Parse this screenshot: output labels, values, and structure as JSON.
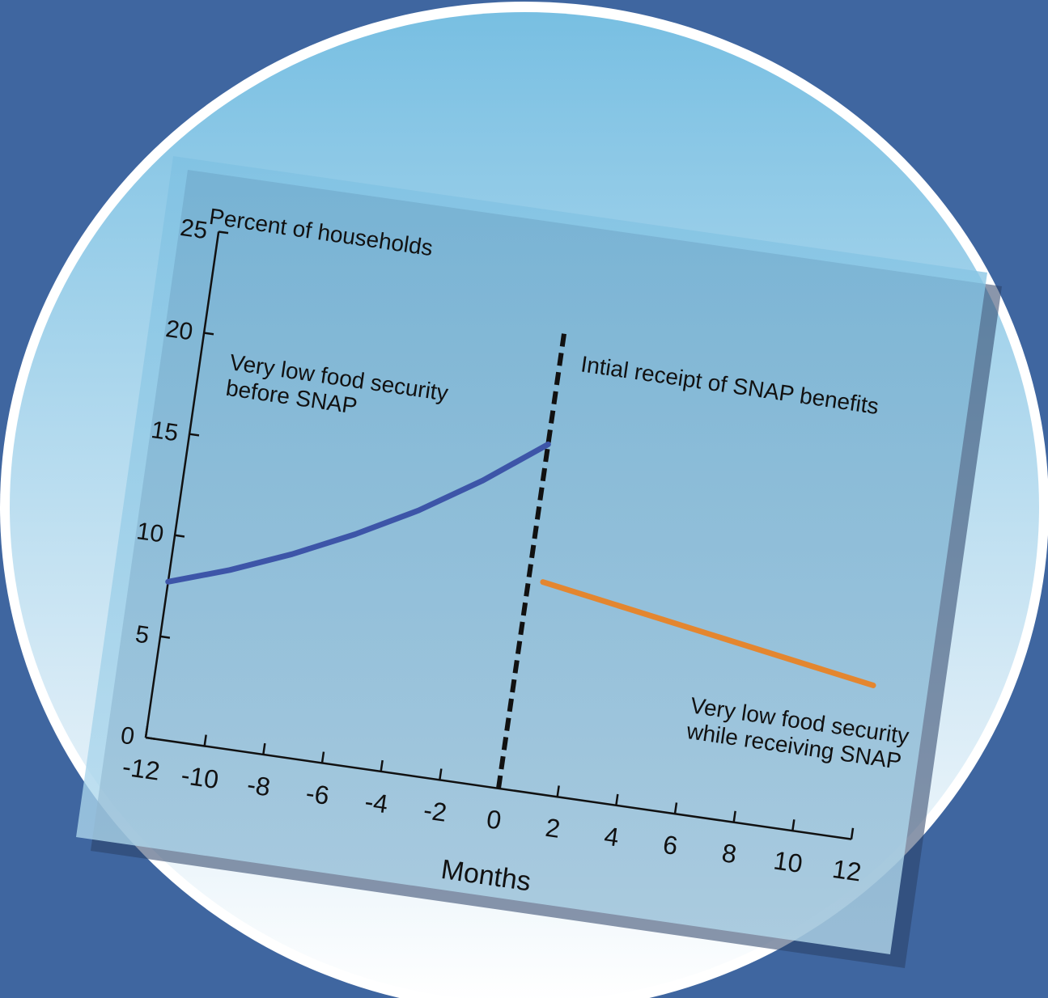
{
  "colors": {
    "background": "#3f66a0",
    "card_top": "#7fc1e2",
    "card_bottom": "#b6dbee",
    "before_series": "#3d55a8",
    "while_series": "#e4862f",
    "marker_line": "#111111"
  },
  "chart_data": {
    "type": "line",
    "title": "",
    "ylabel": "Percent of households",
    "xlabel": "Months",
    "xlim": [
      -12,
      12
    ],
    "ylim": [
      0,
      25
    ],
    "x_ticks": [
      -12,
      -10,
      -8,
      -6,
      -4,
      -2,
      0,
      2,
      4,
      6,
      8,
      10,
      12
    ],
    "y_ticks": [
      0,
      5,
      10,
      15,
      20,
      25
    ],
    "grid": false,
    "marker": {
      "x": 0,
      "label": "Intial receipt of SNAP benefits"
    },
    "series": [
      {
        "name": "Very low food security before SNAP",
        "label_lines": [
          "Very low food security",
          "before SNAP"
        ],
        "color": "#3d55a8",
        "x": [
          -12,
          -10,
          -8,
          -6,
          -4,
          -2,
          0
        ],
        "y": [
          7.7,
          8.7,
          9.9,
          11.3,
          12.9,
          14.8,
          17.0
        ]
      },
      {
        "name": "Very low food security while receiving SNAP",
        "label_lines": [
          "Very low food security",
          "while receiving SNAP"
        ],
        "color": "#e4862f",
        "x": [
          0,
          11.5
        ],
        "y": [
          10.3,
          7.6
        ]
      }
    ]
  }
}
